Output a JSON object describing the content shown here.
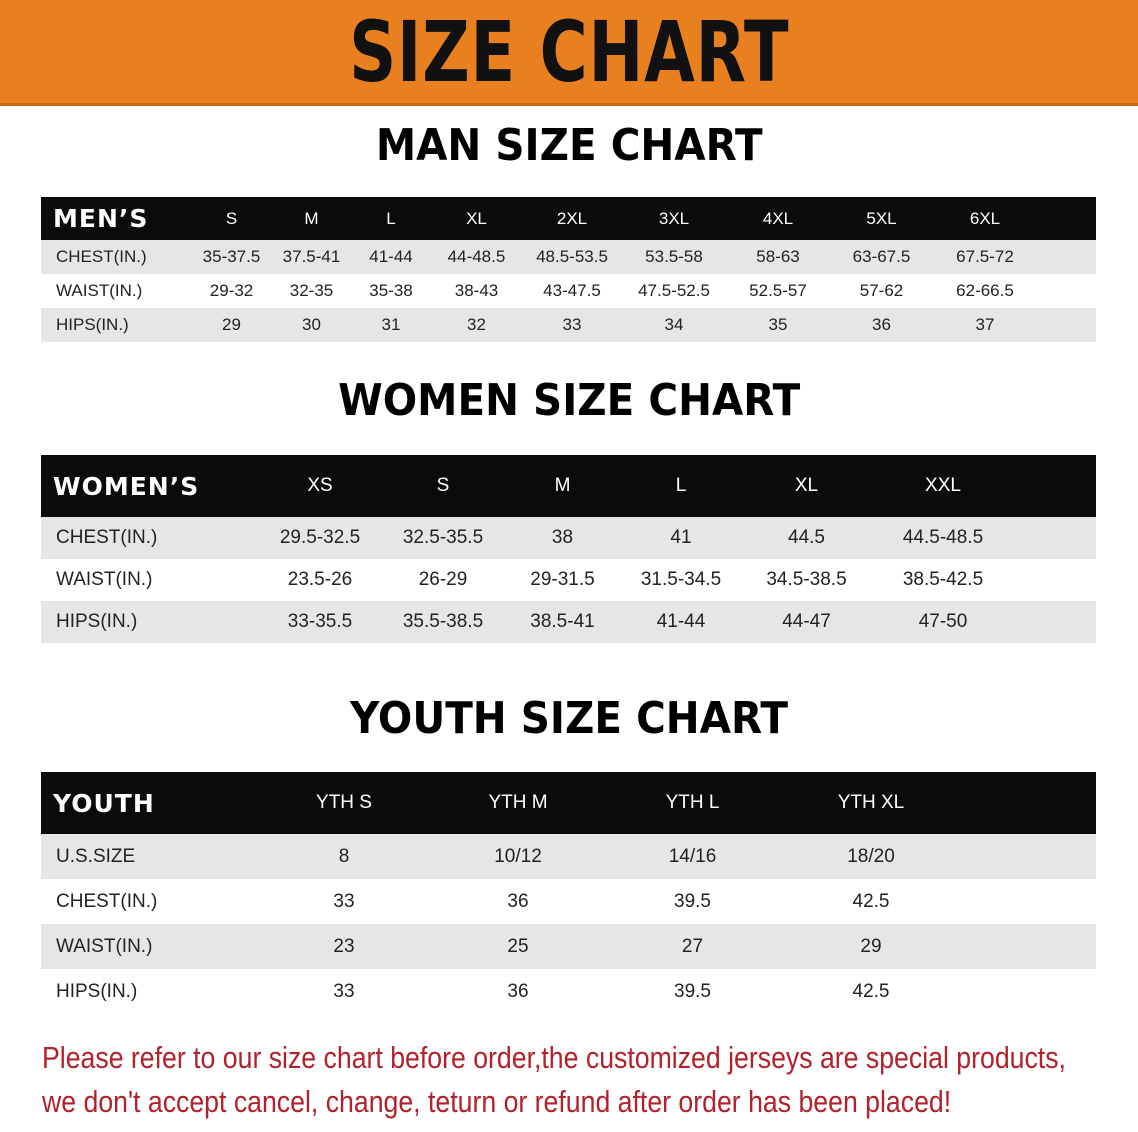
{
  "banner_title": "SIZE CHART",
  "men": {
    "title": "MAN SIZE CHART",
    "header": [
      "MEN’S",
      "S",
      "M",
      "L",
      "XL",
      "2XL",
      "3XL",
      "4XL",
      "5XL",
      "6XL"
    ],
    "rows": [
      [
        "CHEST(IN.)",
        "35-37.5",
        "37.5-41",
        "41-44",
        "44-48.5",
        "48.5-53.5",
        "53.5-58",
        "58-63",
        "63-67.5",
        "67.5-72"
      ],
      [
        "WAIST(IN.)",
        "29-32",
        "32-35",
        "35-38",
        "38-43",
        "43-47.5",
        "47.5-52.5",
        "52.5-57",
        "57-62",
        "62-66.5"
      ],
      [
        "HIPS(IN.)",
        "29",
        "30",
        "31",
        "32",
        "33",
        "34",
        "35",
        "36",
        "37"
      ]
    ]
  },
  "women": {
    "title": "WOMEN SIZE CHART",
    "header": [
      "WOMEN’S",
      "XS",
      "S",
      "M",
      "L",
      "XL",
      "XXL"
    ],
    "rows": [
      [
        "CHEST(IN.)",
        "29.5-32.5",
        "32.5-35.5",
        "38",
        "41",
        "44.5",
        "44.5-48.5"
      ],
      [
        "WAIST(IN.)",
        "23.5-26",
        "26-29",
        "29-31.5",
        "31.5-34.5",
        "34.5-38.5",
        "38.5-42.5"
      ],
      [
        "HIPS(IN.)",
        "33-35.5",
        "35.5-38.5",
        "38.5-41",
        "41-44",
        "44-47",
        "47-50"
      ]
    ]
  },
  "youth": {
    "title": "YOUTH SIZE CHART",
    "header": [
      "YOUTH",
      "YTH S",
      "YTH M",
      "YTH L",
      "YTH XL"
    ],
    "rows": [
      [
        "U.S.SIZE",
        "8",
        "10/12",
        "14/16",
        "18/20"
      ],
      [
        "CHEST(IN.)",
        "33",
        "36",
        "39.5",
        "42.5"
      ],
      [
        "WAIST(IN.)",
        "23",
        "25",
        "27",
        "29"
      ],
      [
        "HIPS(IN.)",
        "33",
        "36",
        "39.5",
        "42.5"
      ]
    ]
  },
  "footer": {
    "line1": "Please refer to our size chart before order,the customized jerseys are special products,",
    "line2": "we don't accept cancel, change, teturn or refund after order has been placed!"
  },
  "colors": {
    "banner": "#e8801f",
    "header_bg": "#0b0b0b",
    "row_alt": "#e6e6e6",
    "notice": "#b3212b"
  }
}
